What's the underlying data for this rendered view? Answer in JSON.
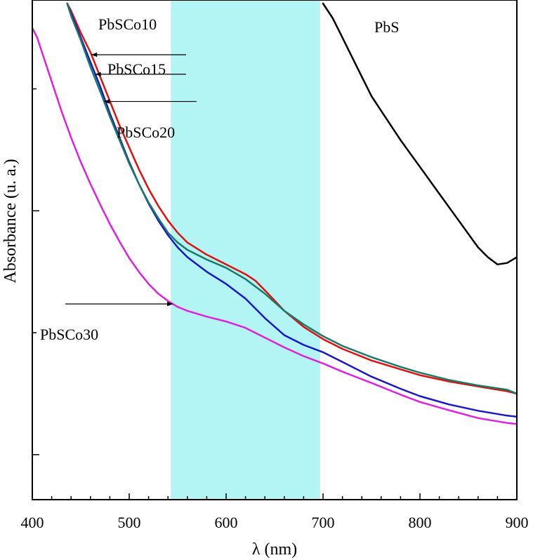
{
  "chart_data": {
    "type": "line",
    "title": "",
    "xlabel": "λ (nm)",
    "ylabel": "Absorbance (u. a.)",
    "xlim": [
      400,
      900
    ],
    "ylim": [
      0.0,
      1.0
    ],
    "xticks": [
      400,
      500,
      600,
      700,
      800,
      900
    ],
    "y_tick_labels_shown": false,
    "grid": false,
    "highlight_band": {
      "x_start": 543,
      "x_end": 697,
      "color": "#b3f4f4"
    },
    "series": [
      {
        "name": "PbS",
        "color": "#000000",
        "x": [
          700,
          710,
          720,
          730,
          740,
          750,
          760,
          780,
          800,
          820,
          840,
          860,
          870,
          880,
          890,
          900
        ],
        "y": [
          1.0,
          0.97,
          0.93,
          0.89,
          0.85,
          0.81,
          0.78,
          0.72,
          0.665,
          0.61,
          0.555,
          0.5,
          0.48,
          0.465,
          0.468,
          0.48
        ]
      },
      {
        "name": "PbSCo10",
        "color": "#e01010",
        "x": [
          436,
          440,
          450,
          460,
          470,
          480,
          490,
          500,
          510,
          520,
          530,
          540,
          550,
          560,
          580,
          600,
          620,
          630,
          640,
          660,
          680,
          700,
          720,
          750,
          780,
          800,
          830,
          860,
          890,
          900
        ],
        "y": [
          1.0,
          0.985,
          0.94,
          0.9,
          0.85,
          0.8,
          0.75,
          0.705,
          0.66,
          0.62,
          0.585,
          0.555,
          0.53,
          0.51,
          0.485,
          0.465,
          0.445,
          0.432,
          0.412,
          0.37,
          0.337,
          0.312,
          0.292,
          0.268,
          0.25,
          0.238,
          0.225,
          0.215,
          0.205,
          0.2
        ]
      },
      {
        "name": "PbSCo15",
        "color": "#1818c8",
        "x": [
          436,
          440,
          450,
          460,
          470,
          480,
          490,
          500,
          510,
          520,
          530,
          540,
          550,
          560,
          580,
          600,
          620,
          640,
          660,
          680,
          700,
          720,
          750,
          780,
          800,
          830,
          860,
          890,
          900
        ],
        "y": [
          1.0,
          0.98,
          0.93,
          0.88,
          0.83,
          0.775,
          0.725,
          0.675,
          0.63,
          0.59,
          0.555,
          0.525,
          0.5,
          0.48,
          0.45,
          0.425,
          0.395,
          0.355,
          0.32,
          0.3,
          0.285,
          0.265,
          0.235,
          0.21,
          0.195,
          0.178,
          0.165,
          0.155,
          0.153
        ]
      },
      {
        "name": "PbSCo20",
        "color": "#1a7a6a",
        "x": [
          436,
          440,
          450,
          460,
          470,
          480,
          490,
          500,
          510,
          520,
          530,
          540,
          550,
          560,
          580,
          600,
          620,
          640,
          660,
          680,
          700,
          720,
          750,
          780,
          800,
          830,
          860,
          890,
          900
        ],
        "y": [
          1.0,
          0.975,
          0.925,
          0.87,
          0.82,
          0.768,
          0.72,
          0.672,
          0.63,
          0.592,
          0.56,
          0.53,
          0.51,
          0.495,
          0.475,
          0.458,
          0.435,
          0.405,
          0.37,
          0.342,
          0.318,
          0.298,
          0.275,
          0.255,
          0.243,
          0.228,
          0.217,
          0.208,
          0.2
        ]
      },
      {
        "name": "PbSCo30",
        "color": "#e020e0",
        "x": [
          400,
          405,
          410,
          420,
          430,
          440,
          450,
          460,
          470,
          480,
          490,
          500,
          510,
          520,
          530,
          540,
          550,
          560,
          580,
          600,
          620,
          640,
          660,
          680,
          700,
          720,
          750,
          780,
          800,
          830,
          860,
          890,
          900
        ],
        "y": [
          0.95,
          0.93,
          0.9,
          0.84,
          0.78,
          0.725,
          0.675,
          0.63,
          0.588,
          0.548,
          0.512,
          0.478,
          0.45,
          0.425,
          0.405,
          0.39,
          0.378,
          0.37,
          0.358,
          0.348,
          0.335,
          0.315,
          0.295,
          0.277,
          0.262,
          0.245,
          0.222,
          0.198,
          0.183,
          0.166,
          0.15,
          0.14,
          0.138
        ]
      }
    ],
    "annotations": [
      {
        "text": "PbSCo10",
        "series": "PbSCo10",
        "arrow_to_x": 461
      },
      {
        "text": "PbSCo15",
        "series": "PbSCo15",
        "arrow_to_x": 465
      },
      {
        "text": "PbSCo20",
        "series": "PbSCo20",
        "arrow_to_x": 474
      },
      {
        "text": "PbSCo30",
        "series": "PbSCo30",
        "arrow_to_x": 545
      },
      {
        "text": "PbS",
        "series": "PbS"
      }
    ]
  }
}
